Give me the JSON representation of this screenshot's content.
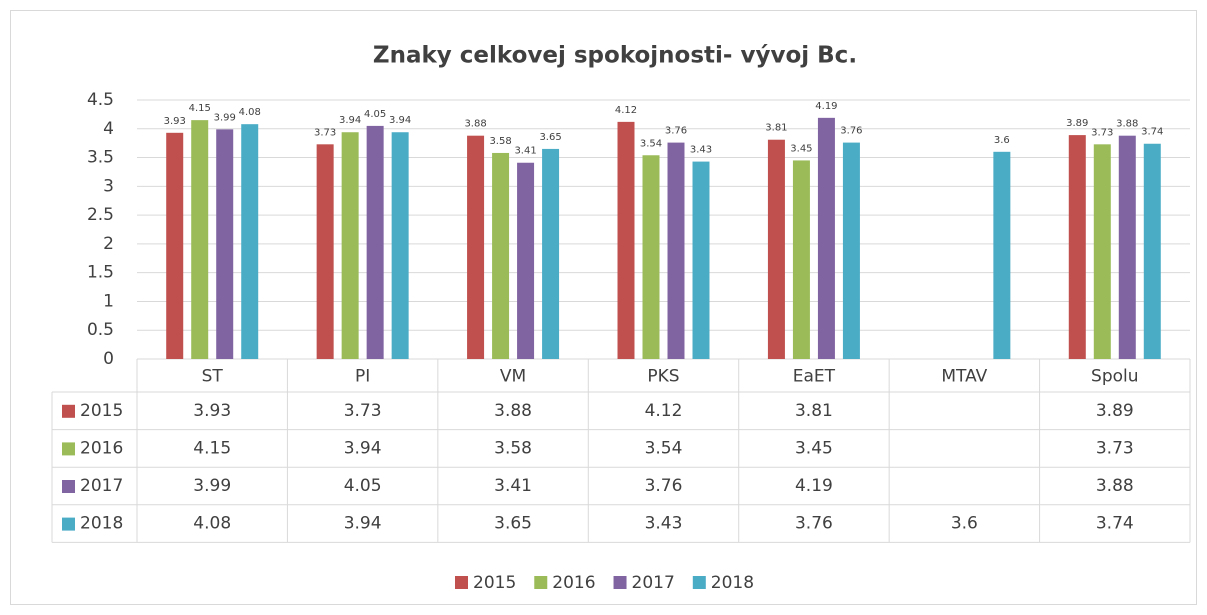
{
  "chart_data": {
    "type": "bar",
    "title": "Znaky celkovej spokojnosti- vývoj Bc.",
    "categories": [
      "ST",
      "PI",
      "VM",
      "PKS",
      "EaET",
      "MTAV",
      "Spolu"
    ],
    "series": [
      {
        "name": "2015",
        "color": "#c0504d",
        "values": [
          3.93,
          3.73,
          3.88,
          4.12,
          3.81,
          null,
          3.89
        ]
      },
      {
        "name": "2016",
        "color": "#9bbb59",
        "values": [
          4.15,
          3.94,
          3.58,
          3.54,
          3.45,
          null,
          3.73
        ]
      },
      {
        "name": "2017",
        "color": "#8064a2",
        "values": [
          3.99,
          4.05,
          3.41,
          3.76,
          4.19,
          null,
          3.88
        ]
      },
      {
        "name": "2018",
        "color": "#4bacc6",
        "values": [
          4.08,
          3.94,
          3.65,
          3.43,
          3.76,
          3.6,
          3.74
        ]
      }
    ],
    "ylim": [
      0,
      4.5
    ],
    "yticks": [
      0,
      0.5,
      1,
      1.5,
      2,
      2.5,
      3,
      3.5,
      4,
      4.5
    ],
    "grid": true,
    "legend": "bottom"
  }
}
